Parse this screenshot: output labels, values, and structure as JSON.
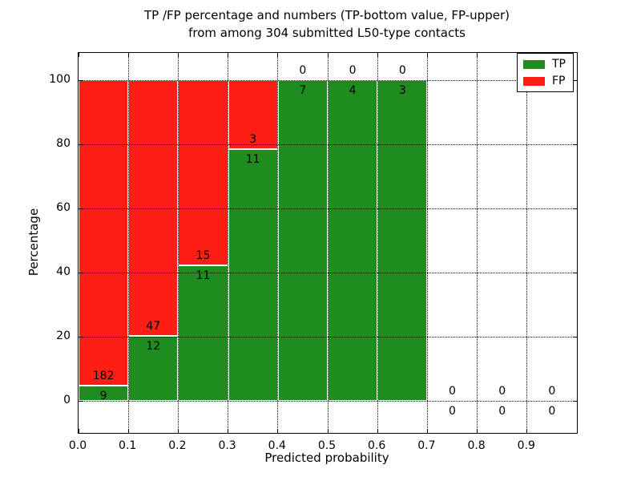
{
  "figure_title": {
    "line1": "TP /FP percentage and numbers (TP-bottom value, FP-upper)",
    "line2": "from among 304 submitted L50-type contacts"
  },
  "chart_data": {
    "type": "bar",
    "stacked": true,
    "title": "TP /FP percentage and numbers (TP-bottom value, FP-upper) from among 304 submitted L50-type contacts",
    "xlabel": "Predicted probability",
    "ylabel": "Percentage",
    "total_contacts": 304,
    "bin_width": 0.1,
    "categories": [
      "0.0-0.1",
      "0.1-0.2",
      "0.2-0.3",
      "0.3-0.4",
      "0.4-0.5",
      "0.5-0.6",
      "0.6-0.7",
      "0.7-0.8",
      "0.8-0.9",
      "0.9-1.0"
    ],
    "series": [
      {
        "name": "TP",
        "color": "#1f8c1f",
        "counts": [
          9,
          12,
          11,
          11,
          7,
          4,
          3,
          0,
          0,
          0
        ]
      },
      {
        "name": "FP",
        "color": "#ff1e14",
        "counts": [
          182,
          47,
          15,
          3,
          0,
          0,
          0,
          0,
          0,
          0
        ]
      }
    ],
    "bins": [
      {
        "x0": 0.0,
        "x1": 0.1,
        "tp": 9,
        "fp": 182
      },
      {
        "x0": 0.1,
        "x1": 0.2,
        "tp": 12,
        "fp": 47
      },
      {
        "x0": 0.2,
        "x1": 0.3,
        "tp": 11,
        "fp": 15
      },
      {
        "x0": 0.3,
        "x1": 0.4,
        "tp": 11,
        "fp": 3
      },
      {
        "x0": 0.4,
        "x1": 0.5,
        "tp": 7,
        "fp": 0
      },
      {
        "x0": 0.5,
        "x1": 0.6,
        "tp": 4,
        "fp": 0
      },
      {
        "x0": 0.6,
        "x1": 0.7,
        "tp": 3,
        "fp": 0
      },
      {
        "x0": 0.7,
        "x1": 0.8,
        "tp": 0,
        "fp": 0
      },
      {
        "x0": 0.8,
        "x1": 0.9,
        "tp": 0,
        "fp": 0
      },
      {
        "x0": 0.9,
        "x1": 1.0,
        "tp": 0,
        "fp": 0
      }
    ],
    "xticks": [
      "0.0",
      "0.1",
      "0.2",
      "0.3",
      "0.4",
      "0.5",
      "0.6",
      "0.7",
      "0.8",
      "0.9"
    ],
    "yticks": [
      0,
      20,
      40,
      60,
      80,
      100
    ],
    "xlim": [
      0,
      1.0
    ],
    "ylim": [
      -10,
      108.5
    ],
    "grid": "dotted black, both axes, drawn over bars",
    "bar_edge_color": "#ffffff",
    "legend_position": "upper right",
    "legend": [
      {
        "label": "TP",
        "color": "#1f8c1f"
      },
      {
        "label": "FP",
        "color": "#ff1e14"
      }
    ]
  }
}
